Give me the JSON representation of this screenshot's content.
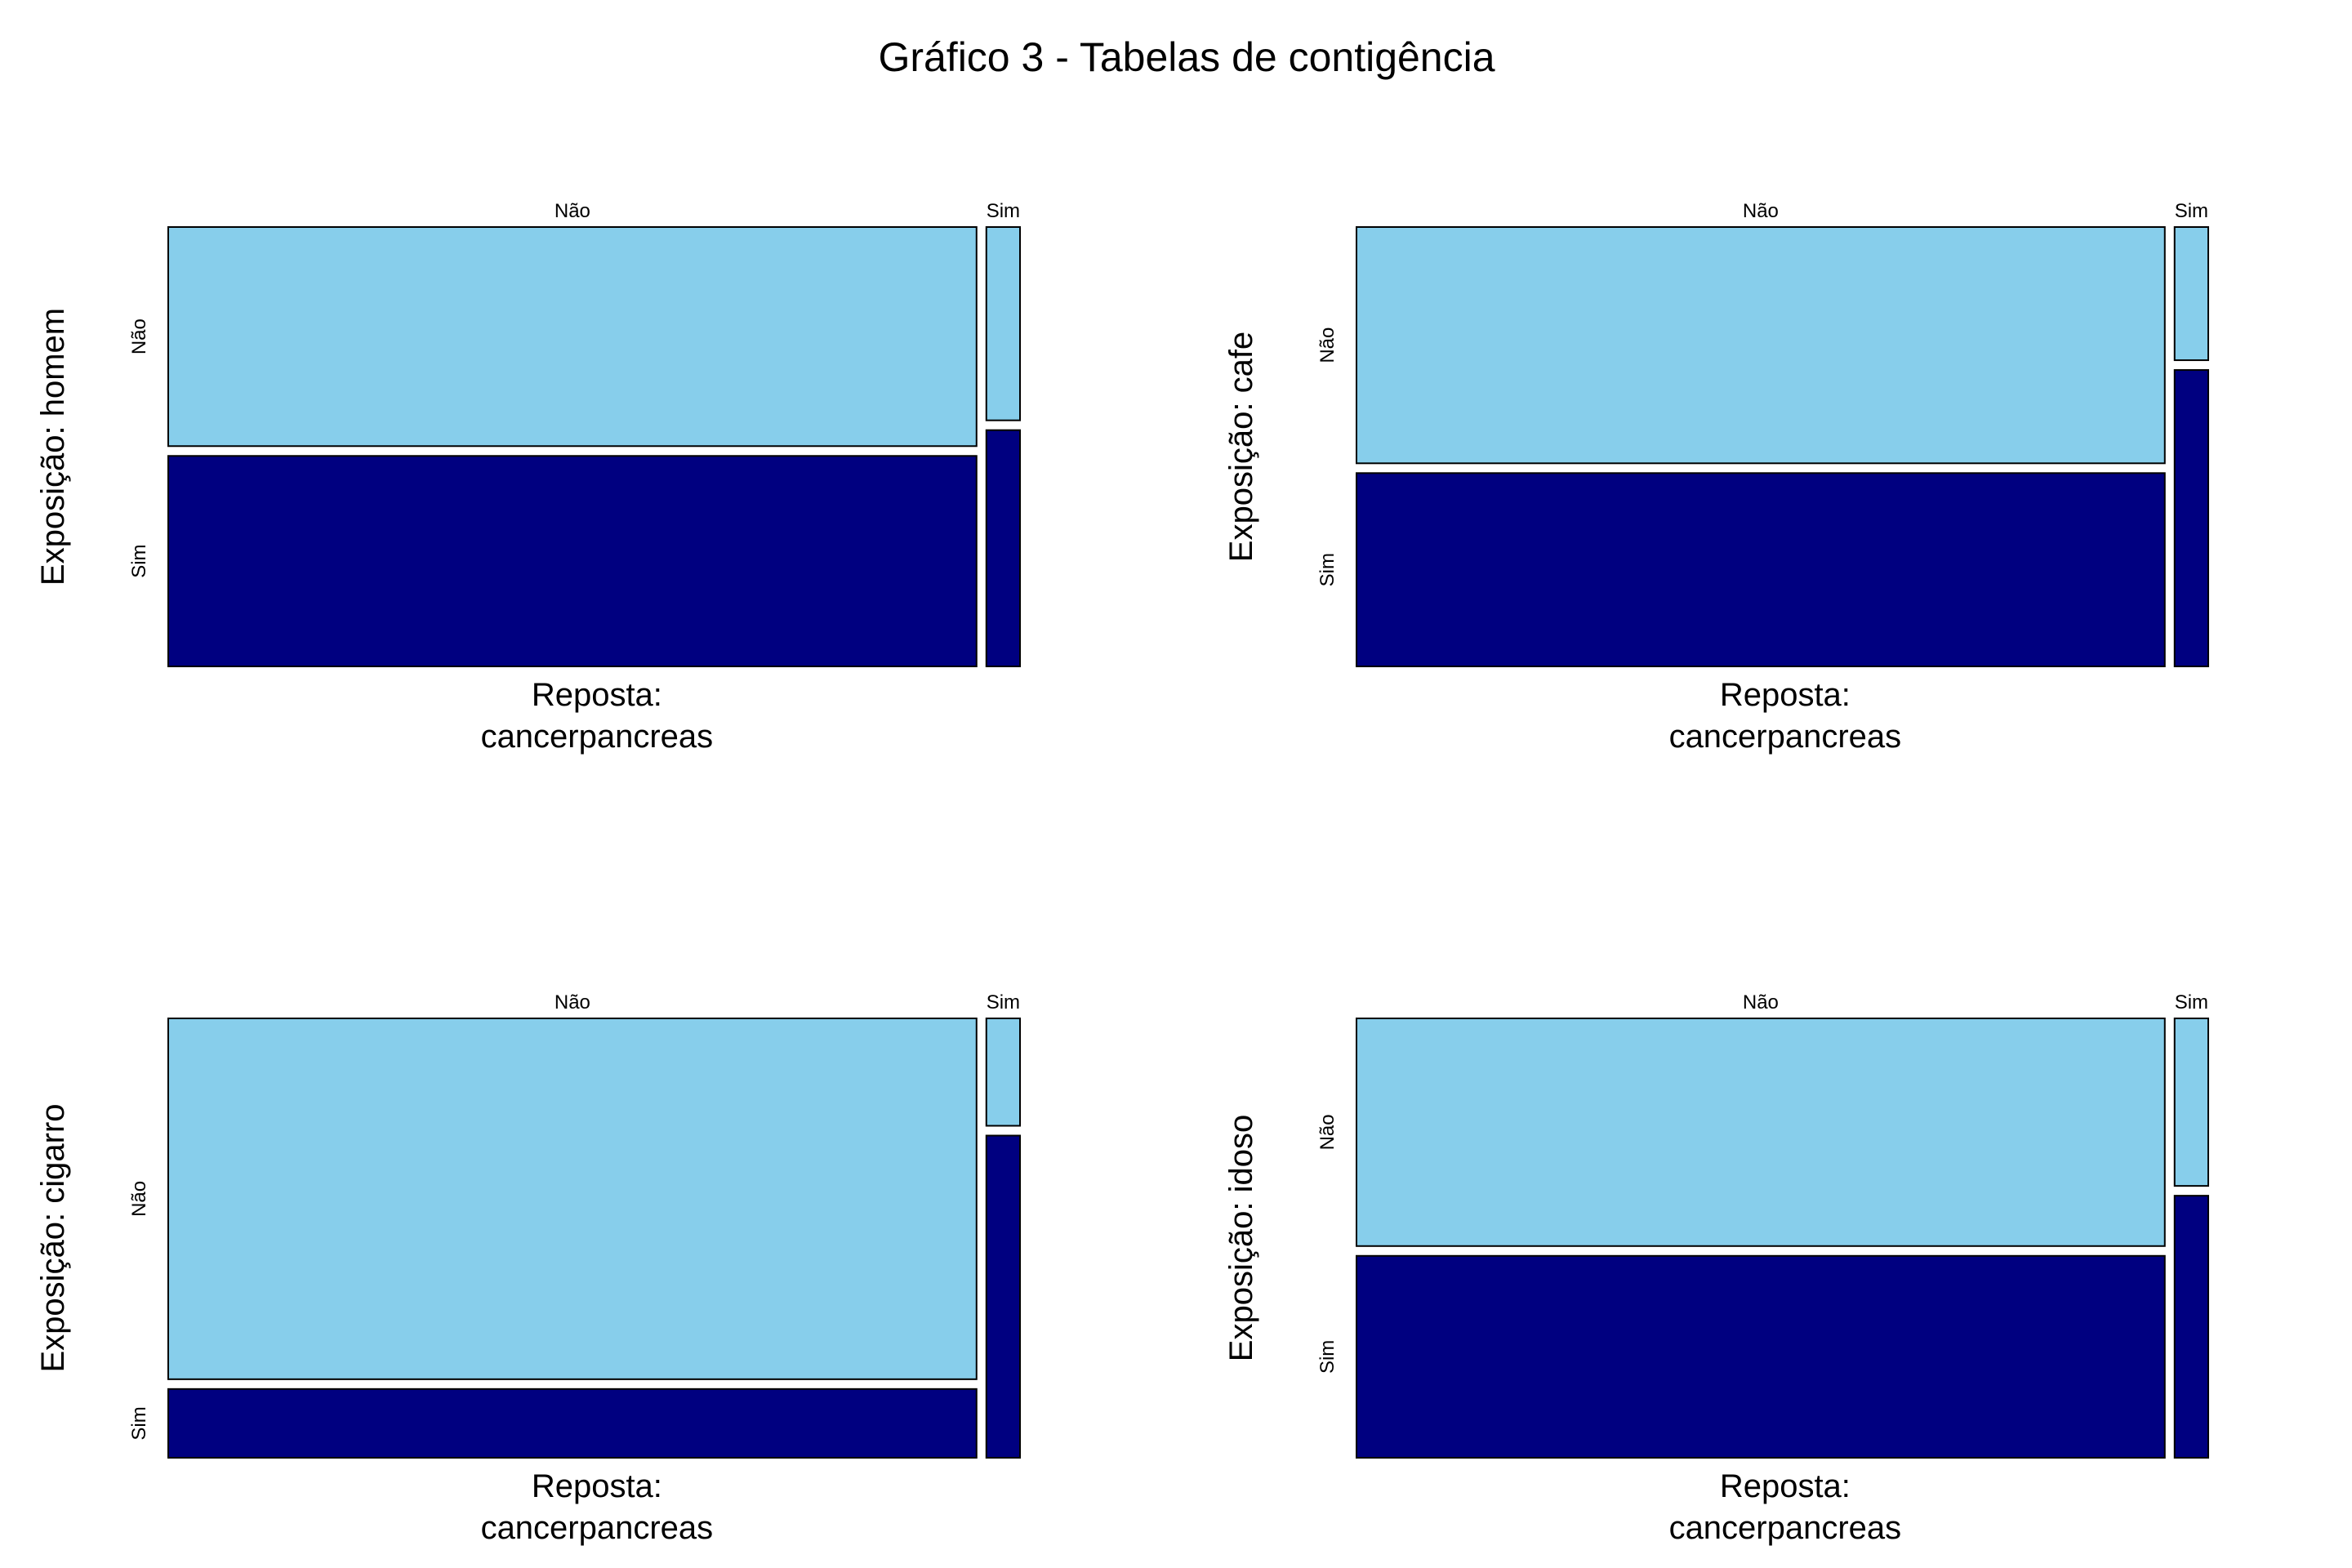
{
  "title": "Gráfico 3 - Tabelas de contigência",
  "colors": {
    "nao": "#87CEEB",
    "sim": "#000080",
    "border": "#000000"
  },
  "chart_data": [
    {
      "type": "mosaic",
      "ylabel": "Exposição: homem",
      "xlabel_line1": "Reposta:",
      "xlabel_line2": "cancerpancreas",
      "response_levels": [
        "Não",
        "Sim"
      ],
      "exposure_levels": [
        "Não",
        "Sim"
      ],
      "response_proportions": [
        0.96,
        0.04
      ],
      "exposure_proportions_within_response": [
        [
          0.51,
          0.49
        ],
        [
          0.45,
          0.55
        ]
      ]
    },
    {
      "type": "mosaic",
      "ylabel": "Exposição: cafe",
      "xlabel_line1": "Reposta:",
      "xlabel_line2": "cancerpancreas",
      "response_levels": [
        "Não",
        "Sim"
      ],
      "exposure_levels": [
        "Não",
        "Sim"
      ],
      "response_proportions": [
        0.96,
        0.04
      ],
      "exposure_proportions_within_response": [
        [
          0.55,
          0.45
        ],
        [
          0.31,
          0.69
        ]
      ]
    },
    {
      "type": "mosaic",
      "ylabel": "Exposição: cigarro",
      "xlabel_line1": "Reposta:",
      "xlabel_line2": "cancerpancreas",
      "response_levels": [
        "Não",
        "Sim"
      ],
      "exposure_levels": [
        "Não",
        "Sim"
      ],
      "response_proportions": [
        0.96,
        0.04
      ],
      "exposure_proportions_within_response": [
        [
          0.84,
          0.16
        ],
        [
          0.25,
          0.75
        ]
      ]
    },
    {
      "type": "mosaic",
      "ylabel": "Exposição: idoso",
      "xlabel_line1": "Reposta:",
      "xlabel_line2": "cancerpancreas",
      "response_levels": [
        "Não",
        "Sim"
      ],
      "exposure_levels": [
        "Não",
        "Sim"
      ],
      "response_proportions": [
        0.96,
        0.04
      ],
      "exposure_proportions_within_response": [
        [
          0.53,
          0.47
        ],
        [
          0.39,
          0.61
        ]
      ]
    }
  ]
}
